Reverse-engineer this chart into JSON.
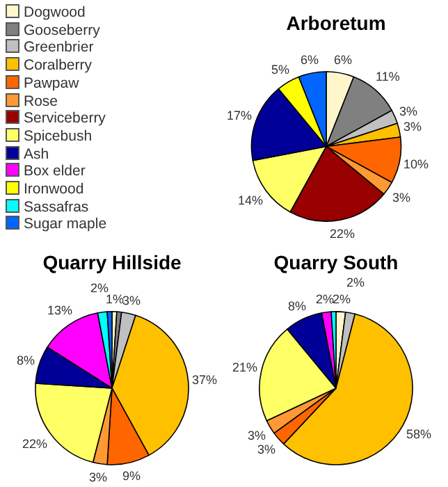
{
  "chart_data": [
    {
      "type": "pie",
      "title": "Arboretum",
      "legend": "top left",
      "categories": [
        "Dogwood",
        "Gooseberry",
        "Greenbrier",
        "Coralberry",
        "Pawpaw",
        "Rose",
        "Serviceberry",
        "Spicebush",
        "Ash",
        "Box elder",
        "Ironwood",
        "Sassafras",
        "Sugar maple"
      ],
      "colors": [
        "#fff6cc",
        "#808080",
        "#c0c0c0",
        "#ffc000",
        "#ff6600",
        "#ff9933",
        "#990000",
        "#ffff66",
        "#000099",
        "#ff00ff",
        "#ffff00",
        "#00ffff",
        "#0066ff"
      ],
      "values": [
        6,
        11,
        3,
        3,
        10,
        3,
        22,
        14,
        17,
        0,
        5,
        0,
        6
      ],
      "value_labels": [
        "6%",
        "11%",
        "3%",
        "3%",
        "10%",
        "3%",
        "22%",
        "14%",
        "17%",
        null,
        "5%",
        null,
        "6%"
      ]
    },
    {
      "type": "pie",
      "title": "Quarry Hillside",
      "categories": [
        null,
        null,
        null,
        null,
        null,
        null,
        null,
        null,
        null,
        null,
        null,
        null,
        null
      ],
      "colors": [
        "#fff6cc",
        "#808080",
        "#c0c0c0",
        "#ffc000",
        "#ff6600",
        "#ff9933",
        "#990000",
        "#ffff66",
        "#000099",
        "#ff00ff",
        "#ffff00",
        "#00ffff",
        "#0066ff"
      ],
      "values": [
        1,
        1,
        3,
        37,
        9,
        3,
        0,
        22,
        8,
        13,
        0,
        2,
        1
      ],
      "value_labels": [
        "1%",
        null,
        "3%",
        "37%",
        "9%",
        "3%",
        null,
        "22%",
        "8%",
        "13%",
        null,
        "2%",
        null
      ]
    },
    {
      "type": "pie",
      "title": "Quarry South",
      "categories": [
        null,
        null,
        null,
        null,
        null,
        null,
        null,
        null,
        null,
        null,
        null,
        null,
        null
      ],
      "colors": [
        "#fff6cc",
        "#808080",
        "#c0c0c0",
        "#ffc000",
        "#ff6600",
        "#ff9933",
        "#990000",
        "#ffff66",
        "#000099",
        "#ff00ff",
        "#ffff00",
        "#00ffff",
        "#0066ff"
      ],
      "values": [
        2,
        0,
        2,
        58,
        3,
        3,
        0,
        21,
        8,
        2,
        0,
        1,
        0
      ],
      "value_labels": [
        "2%",
        null,
        "2%",
        "58%",
        "3%",
        "3%",
        null,
        "21%",
        "8%",
        "2%",
        null,
        null,
        null
      ]
    }
  ]
}
